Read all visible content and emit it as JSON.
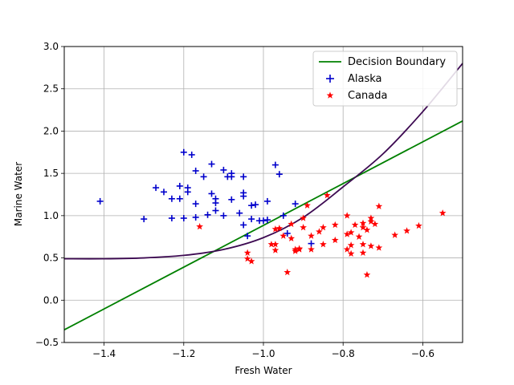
{
  "chart_data": {
    "type": "scatter",
    "title": "",
    "xlabel": "Fresh Water",
    "ylabel": "Marine Water",
    "xlim": [
      -1.5,
      -0.5
    ],
    "ylim": [
      -0.5,
      3.0
    ],
    "xticks": [
      -1.4,
      -1.2,
      -1.0,
      -0.8,
      -0.6
    ],
    "xtick_labels": [
      "−1.4",
      "−1.2",
      "−1.0",
      "−0.8",
      "−0.6"
    ],
    "yticks": [
      -0.5,
      0.0,
      0.5,
      1.0,
      1.5,
      2.0,
      2.5,
      3.0
    ],
    "ytick_labels": [
      "−0.5",
      "0.0",
      "0.5",
      "1.0",
      "1.5",
      "2.0",
      "2.5",
      "3.0"
    ],
    "grid": true,
    "legend_position": "top-right",
    "series": [
      {
        "name": "Alaska",
        "marker": "plus",
        "color": "#0000cc",
        "points": [
          [
            -1.41,
            1.17
          ],
          [
            -1.3,
            0.96
          ],
          [
            -1.27,
            1.33
          ],
          [
            -1.25,
            1.28
          ],
          [
            -1.23,
            1.2
          ],
          [
            -1.23,
            0.97
          ],
          [
            -1.21,
            1.2
          ],
          [
            -1.21,
            1.35
          ],
          [
            -1.2,
            1.75
          ],
          [
            -1.19,
            1.33
          ],
          [
            -1.19,
            1.28
          ],
          [
            -1.18,
            1.72
          ],
          [
            -1.17,
            1.53
          ],
          [
            -1.17,
            1.14
          ],
          [
            -1.2,
            0.97
          ],
          [
            -1.17,
            0.98
          ],
          [
            -1.15,
            1.46
          ],
          [
            -1.14,
            1.01
          ],
          [
            -1.13,
            1.61
          ],
          [
            -1.13,
            1.26
          ],
          [
            -1.12,
            1.2
          ],
          [
            -1.12,
            1.15
          ],
          [
            -1.12,
            1.06
          ],
          [
            -1.1,
            1.0
          ],
          [
            -1.1,
            1.54
          ],
          [
            -1.09,
            1.46
          ],
          [
            -1.08,
            1.5
          ],
          [
            -1.08,
            1.46
          ],
          [
            -1.08,
            1.19
          ],
          [
            -1.06,
            1.03
          ],
          [
            -1.05,
            1.46
          ],
          [
            -1.05,
            1.23
          ],
          [
            -1.05,
            1.27
          ],
          [
            -1.05,
            0.89
          ],
          [
            -1.03,
            1.12
          ],
          [
            -1.03,
            0.96
          ],
          [
            -1.02,
            1.13
          ],
          [
            -1.01,
            0.94
          ],
          [
            -1.0,
            0.94
          ],
          [
            -0.99,
            1.17
          ],
          [
            -0.99,
            0.95
          ],
          [
            -0.97,
            1.6
          ],
          [
            -0.96,
            1.49
          ],
          [
            -0.95,
            1.0
          ],
          [
            -0.94,
            0.79
          ],
          [
            -0.92,
            1.14
          ],
          [
            -0.88,
            0.67
          ],
          [
            -1.04,
            0.76
          ]
        ]
      },
      {
        "name": "Canada",
        "marker": "star",
        "color": "#ff0000",
        "points": [
          [
            -1.16,
            0.87
          ],
          [
            -1.04,
            0.56
          ],
          [
            -1.04,
            0.49
          ],
          [
            -1.03,
            0.46
          ],
          [
            -0.98,
            0.66
          ],
          [
            -0.97,
            0.66
          ],
          [
            -0.97,
            0.59
          ],
          [
            -0.97,
            0.84
          ],
          [
            -0.96,
            0.85
          ],
          [
            -0.95,
            0.76
          ],
          [
            -0.94,
            0.33
          ],
          [
            -0.93,
            0.73
          ],
          [
            -0.93,
            0.9
          ],
          [
            -0.92,
            0.6
          ],
          [
            -0.92,
            0.58
          ],
          [
            -0.91,
            0.61
          ],
          [
            -0.91,
            0.6
          ],
          [
            -0.9,
            0.97
          ],
          [
            -0.9,
            0.86
          ],
          [
            -0.89,
            1.12
          ],
          [
            -0.88,
            0.6
          ],
          [
            -0.88,
            0.76
          ],
          [
            -0.86,
            0.81
          ],
          [
            -0.85,
            0.86
          ],
          [
            -0.85,
            0.66
          ],
          [
            -0.84,
            1.24
          ],
          [
            -0.82,
            0.89
          ],
          [
            -0.82,
            0.71
          ],
          [
            -0.79,
            1.0
          ],
          [
            -0.79,
            0.78
          ],
          [
            -0.79,
            0.6
          ],
          [
            -0.78,
            0.65
          ],
          [
            -0.78,
            0.55
          ],
          [
            -0.78,
            0.8
          ],
          [
            -0.77,
            0.89
          ],
          [
            -0.76,
            0.75
          ],
          [
            -0.75,
            0.86
          ],
          [
            -0.75,
            0.91
          ],
          [
            -0.75,
            0.66
          ],
          [
            -0.75,
            0.56
          ],
          [
            -0.74,
            0.3
          ],
          [
            -0.74,
            0.83
          ],
          [
            -0.73,
            0.97
          ],
          [
            -0.73,
            0.93
          ],
          [
            -0.73,
            0.64
          ],
          [
            -0.72,
            0.9
          ],
          [
            -0.71,
            0.62
          ],
          [
            -0.71,
            1.11
          ],
          [
            -0.67,
            0.77
          ],
          [
            -0.64,
            0.82
          ],
          [
            -0.61,
            0.88
          ],
          [
            -0.55,
            1.03
          ]
        ]
      },
      {
        "name": "Decision Boundary",
        "type": "line",
        "color": "#008000",
        "x": [
          -1.5,
          -0.5
        ],
        "y": [
          -0.35,
          2.12
        ]
      },
      {
        "name": "curve",
        "type": "line",
        "color": "#3d0a52",
        "show_in_legend": false,
        "x": [
          -1.5,
          -1.4,
          -1.3,
          -1.2,
          -1.1,
          -1.0,
          -0.9,
          -0.8,
          -0.7,
          -0.6,
          -0.5
        ],
        "y": [
          0.49,
          0.49,
          0.5,
          0.53,
          0.6,
          0.74,
          0.98,
          1.34,
          1.73,
          2.23,
          2.8
        ]
      }
    ],
    "legend": [
      "Decision Boundary",
      "Alaska",
      "Canada"
    ]
  }
}
